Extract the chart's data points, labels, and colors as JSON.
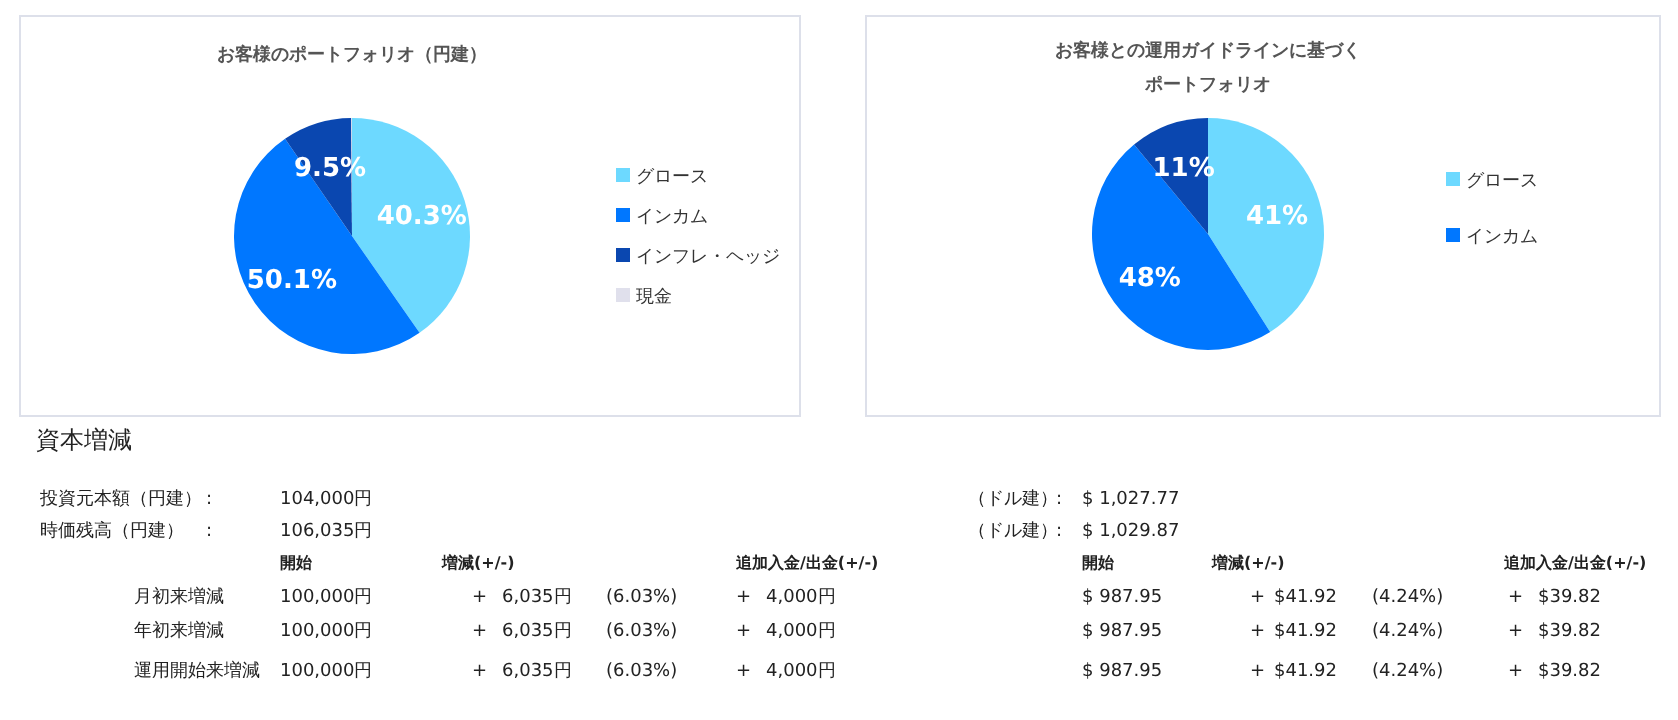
{
  "chart_data": [
    {
      "type": "pie",
      "title": "お客様のポートフォリオ（円建）",
      "categories": [
        "グロース",
        "インカム",
        "インフレ・ヘッジ",
        "現金"
      ],
      "values": [
        40.3,
        50.1,
        9.5,
        0.1
      ],
      "colors": [
        "#6dd9ff",
        "#0077ff",
        "#0a47b0",
        "#e0e0ec"
      ],
      "value_labels": [
        "40.3%",
        "50.1%",
        "9.5%",
        null
      ],
      "legend": "right"
    },
    {
      "type": "pie",
      "title": "お客様との運用ガイドラインに基づくポートフォリオ",
      "categories": [
        "グロース",
        "インカム",
        null
      ],
      "values": [
        41,
        48,
        11
      ],
      "colors": [
        "#6dd9ff",
        "#0077ff",
        "#0a47b0"
      ],
      "value_labels": [
        "41%",
        "48%",
        "11%"
      ],
      "legend": "right"
    },
    {
      "type": "other",
      "title": "資本増減",
      "annotations": [
        "投資元本額（円建）",
        ":",
        "104,000円",
        "（ドル建）",
        ":",
        "$ 1,027.77",
        "時価残高（円建）",
        ":",
        "106,035円",
        "（ドル建）",
        ":",
        "$ 1,029.87",
        "開始",
        "増減(+/-)",
        "追加入金/出金(+/-)",
        "開始",
        "増減(+/-)",
        "追加入金/出金(+/-)",
        "月初来増減",
        "100,000円",
        "+",
        "6,035円",
        "(6.03%)",
        "+",
        "4,000円",
        "$ 987.95",
        "+",
        "$41.92",
        "(4.24%)",
        "+",
        "$39.82",
        "年初来増減",
        "100,000円",
        "+",
        "6,035円",
        "(6.03%)",
        "+",
        "4,000円",
        "$ 987.95",
        "+",
        "$41.92",
        "(4.24%)",
        "+",
        "$39.82",
        "運用開始来増減",
        "100,000円",
        "+",
        "6,035円",
        "(6.03%)",
        "+",
        "4,000円",
        "$ 987.95",
        "+",
        "$41.92",
        "(4.24%)",
        "+",
        "$39.82"
      ]
    }
  ]
}
